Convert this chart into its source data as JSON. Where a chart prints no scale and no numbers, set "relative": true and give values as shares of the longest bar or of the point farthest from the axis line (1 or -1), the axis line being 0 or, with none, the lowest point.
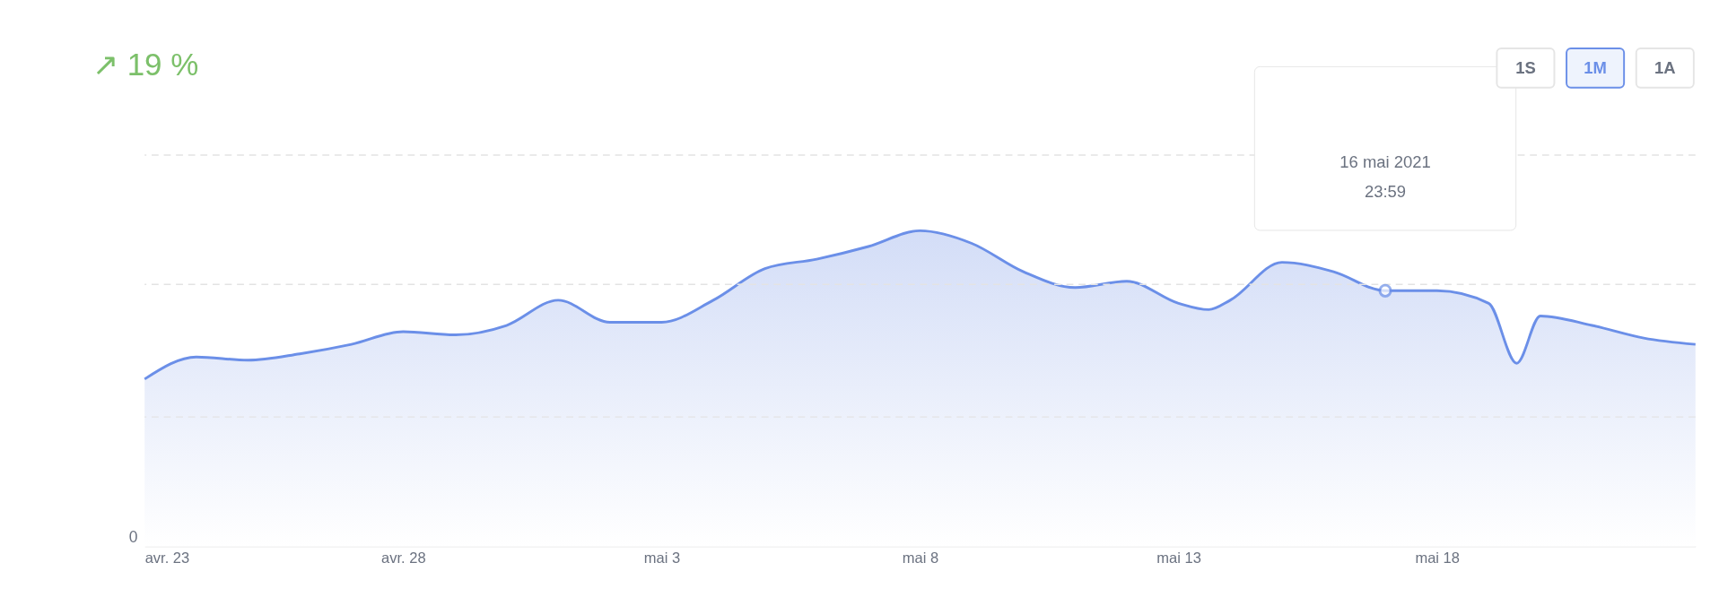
{
  "chart_data": {
    "type": "area",
    "title": "↗ 19 %",
    "relative": true,
    "x": [
      "2021-04-23",
      "2021-04-24",
      "2021-04-25",
      "2021-04-26",
      "2021-04-27",
      "2021-04-28",
      "2021-04-29",
      "2021-04-30",
      "2021-05-01",
      "2021-05-02",
      "2021-05-03",
      "2021-05-04",
      "2021-05-05",
      "2021-05-06",
      "2021-05-07",
      "2021-05-08",
      "2021-05-09",
      "2021-05-10",
      "2021-05-11",
      "2021-05-12",
      "2021-05-13",
      "2021-05-13T14:00",
      "2021-05-14",
      "2021-05-15",
      "2021-05-16",
      "2021-05-16T23:59",
      "2021-05-18",
      "2021-05-19",
      "2021-05-19T13:00",
      "2021-05-20",
      "2021-05-21",
      "2021-05-22",
      "2021-05-23"
    ],
    "series": [
      {
        "color": "#6b8fe8",
        "values": [
          0.53,
          0.6,
          0.59,
          0.61,
          0.64,
          0.68,
          0.67,
          0.7,
          0.78,
          0.71,
          0.71,
          0.78,
          0.88,
          0.91,
          0.95,
          1.0,
          0.96,
          0.87,
          0.82,
          0.84,
          0.77,
          0.75,
          0.78,
          0.9,
          0.87,
          0.81,
          0.81,
          0.77,
          0.58,
          0.73,
          0.7,
          0.66,
          0.64
        ]
      }
    ],
    "xlim": [
      "2021-04-23",
      "2021-05-23"
    ],
    "xticks": [
      {
        "value": "2021-04-23",
        "label": "avr. 23"
      },
      {
        "value": "2021-04-28",
        "label": "avr. 28"
      },
      {
        "value": "2021-05-03",
        "label": "mai 3"
      },
      {
        "value": "2021-05-08",
        "label": "mai 8"
      },
      {
        "value": "2021-05-13",
        "label": "mai 13"
      },
      {
        "value": "2021-05-18",
        "label": "mai 18"
      }
    ],
    "grid": false,
    "line_style": "solid",
    "marker": "none",
    "ref_lines": [
      {
        "axis": "y",
        "value": 0.41,
        "color": "#e3e3e3",
        "line_style": "dashed"
      },
      {
        "axis": "y",
        "value": 0.83,
        "color": "#e3e3e3",
        "line_style": "dashed"
      },
      {
        "axis": "y",
        "value": 1.24,
        "color": "#e3e3e3",
        "line_style": "dashed"
      }
    ],
    "annotations": [
      "0",
      "16 mai 2021\n23:59",
      "1S",
      "1M",
      "1A"
    ]
  }
}
